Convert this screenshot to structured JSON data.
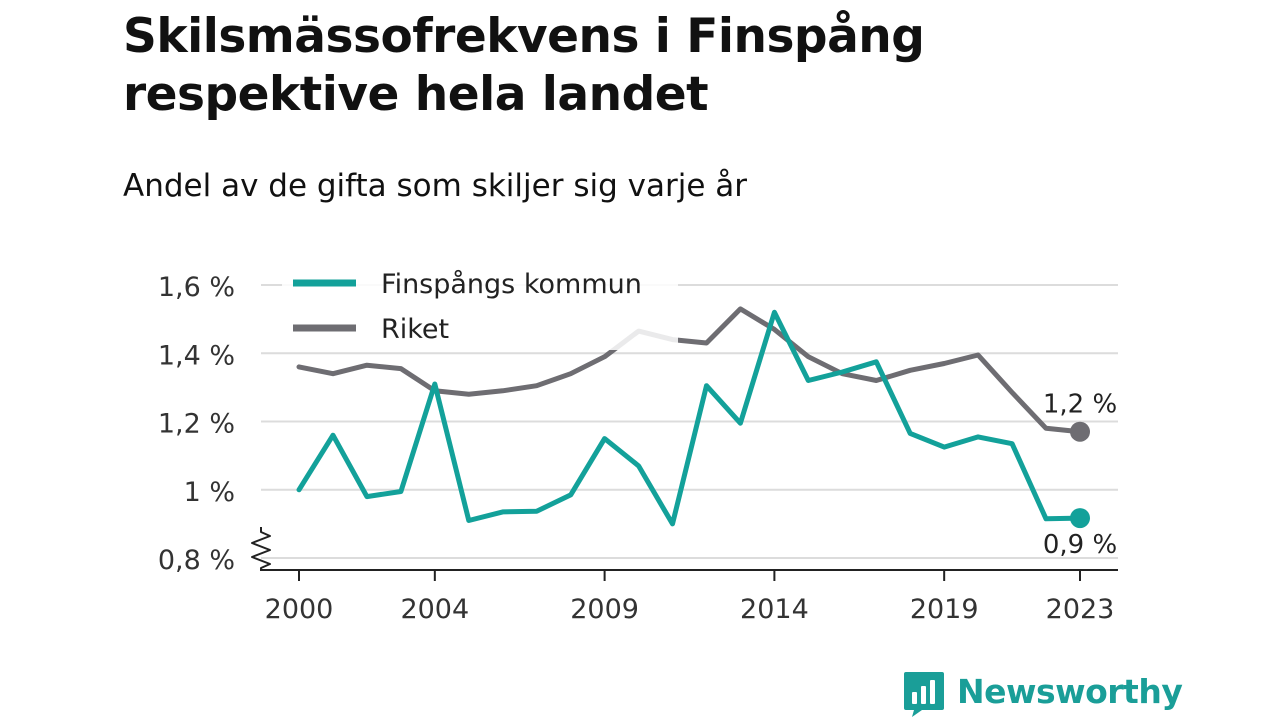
{
  "title": "Skilsmässofrekvens i Finspång respektive hela landet",
  "subtitle": "Andel av de gifta som skiljer sig varje år",
  "brand": "Newsworthy",
  "colors": {
    "finspang": "#13a19a",
    "riket": "#6e6d72",
    "grid": "#dcdcdc",
    "axis": "#222222",
    "brand": "#1a9e98"
  },
  "chart_data": {
    "type": "line",
    "x": [
      2000,
      2001,
      2002,
      2003,
      2004,
      2005,
      2006,
      2007,
      2008,
      2009,
      2010,
      2011,
      2012,
      2013,
      2014,
      2015,
      2016,
      2017,
      2018,
      2019,
      2020,
      2021,
      2022,
      2023
    ],
    "series": [
      {
        "name": "Finspångs kommun",
        "color": "#13a19a",
        "values": [
          1.0,
          1.16,
          0.98,
          0.995,
          1.31,
          0.91,
          0.935,
          0.937,
          0.985,
          1.15,
          1.07,
          0.9,
          1.305,
          1.195,
          1.52,
          1.32,
          1.345,
          1.375,
          1.165,
          1.125,
          1.155,
          1.135,
          0.915,
          0.917
        ],
        "end_label": "0,9 %"
      },
      {
        "name": "Riket",
        "color": "#6e6d72",
        "values": [
          1.36,
          1.34,
          1.365,
          1.355,
          1.29,
          1.28,
          1.29,
          1.305,
          1.34,
          1.39,
          1.465,
          1.44,
          1.43,
          1.53,
          1.47,
          1.39,
          1.34,
          1.32,
          1.35,
          1.37,
          1.395,
          1.285,
          1.18,
          1.17
        ],
        "end_label": "1,2 %"
      }
    ],
    "y_ticks": [
      0.8,
      1.0,
      1.2,
      1.4,
      1.6
    ],
    "y_tick_labels": [
      "0,8 %",
      "1 %",
      "1,2 %",
      "1,4 %",
      "1,6 %"
    ],
    "x_ticks": [
      2000,
      2004,
      2009,
      2014,
      2019,
      2023
    ],
    "x_tick_labels": [
      "2000",
      "2004",
      "2009",
      "2014",
      "2019",
      "2023"
    ],
    "ylim": [
      0.8,
      1.6
    ],
    "y_axis_break": true,
    "grid": true,
    "legend": "top-left"
  }
}
